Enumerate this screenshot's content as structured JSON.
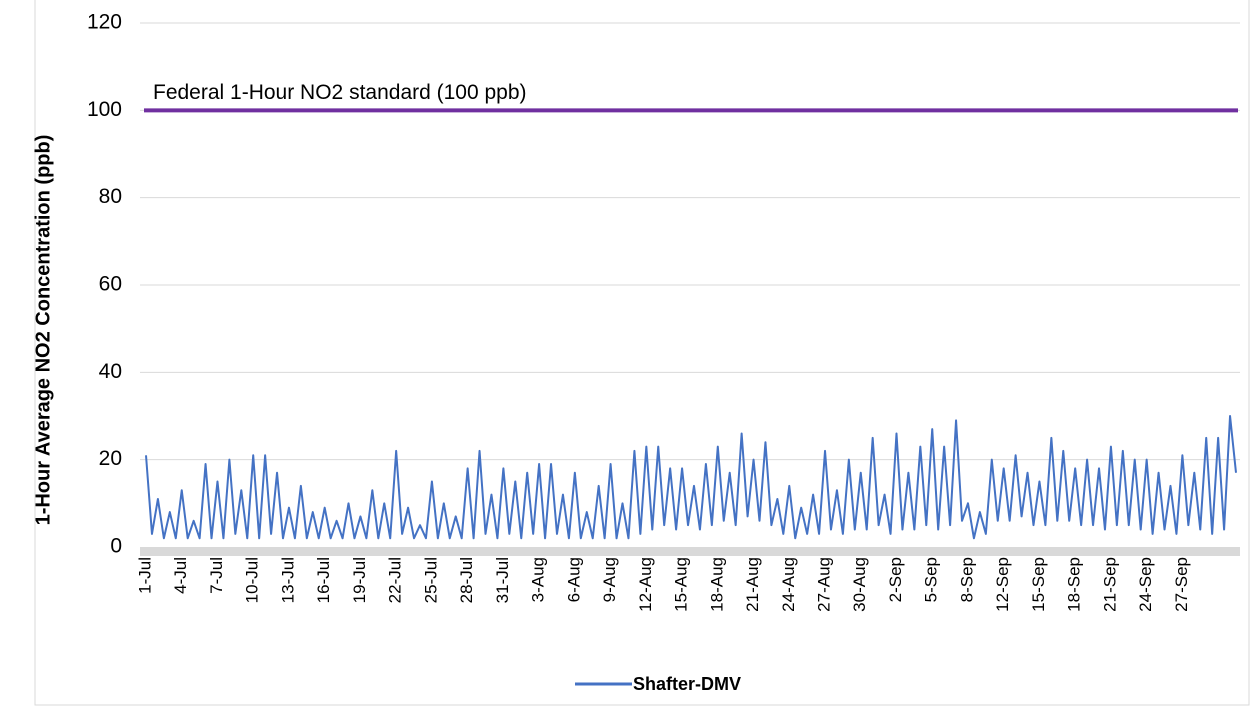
{
  "chart_data": {
    "type": "line",
    "ylabel": "1-Hour Average NO2 Concentration (ppb)",
    "ylim": [
      0,
      120
    ],
    "yticks": [
      0,
      20,
      40,
      60,
      80,
      100,
      120
    ],
    "grid": true,
    "legend": "bottom",
    "threshold": {
      "value": 100,
      "label": "Federal 1-Hour NO2 standard (100 ppb)",
      "color": "#7030a0"
    },
    "categories": [
      "1-Jul",
      null,
      null,
      null,
      null,
      null,
      "4-Jul",
      null,
      null,
      null,
      null,
      null,
      "7-Jul",
      null,
      null,
      null,
      null,
      null,
      "10-Jul",
      null,
      null,
      null,
      null,
      null,
      "13-Jul",
      null,
      null,
      null,
      null,
      null,
      "16-Jul",
      null,
      null,
      null,
      null,
      null,
      "19-Jul",
      null,
      null,
      null,
      null,
      null,
      "22-Jul",
      null,
      null,
      null,
      null,
      null,
      "25-Jul",
      null,
      null,
      null,
      null,
      null,
      "28-Jul",
      null,
      null,
      null,
      null,
      null,
      "31-Jul",
      null,
      null,
      null,
      null,
      null,
      "3-Aug",
      null,
      null,
      null,
      null,
      null,
      "6-Aug",
      null,
      null,
      null,
      null,
      null,
      "9-Aug",
      null,
      null,
      null,
      null,
      null,
      "12-Aug",
      null,
      null,
      null,
      null,
      null,
      "15-Aug",
      null,
      null,
      null,
      null,
      null,
      "18-Aug",
      null,
      null,
      null,
      null,
      null,
      "21-Aug",
      null,
      null,
      null,
      null,
      null,
      "24-Aug",
      null,
      null,
      null,
      null,
      null,
      "27-Aug",
      null,
      null,
      null,
      null,
      null,
      "30-Aug",
      null,
      null,
      null,
      null,
      null,
      "2-Sep",
      null,
      null,
      null,
      null,
      null,
      "5-Sep",
      null,
      null,
      null,
      null,
      null,
      "8-Sep",
      null,
      null,
      null,
      null,
      null,
      "12-Sep",
      null,
      null,
      null,
      null,
      null,
      "15-Sep",
      null,
      null,
      null,
      null,
      null,
      "18-Sep",
      null,
      null,
      null,
      null,
      null,
      "21-Sep",
      null,
      null,
      null,
      null,
      null,
      "24-Sep",
      null,
      null,
      null,
      null,
      null,
      "27-Sep",
      null,
      null,
      null,
      null,
      null,
      null,
      null,
      null,
      null
    ],
    "series": [
      {
        "name": "Shafter-DMV",
        "color": "#4472c4",
        "values": [
          21,
          3,
          11,
          2,
          8,
          2,
          13,
          2,
          6,
          2,
          19,
          2,
          15,
          2,
          20,
          3,
          13,
          2,
          21,
          2,
          21,
          3,
          17,
          2,
          9,
          2,
          14,
          2,
          8,
          2,
          9,
          2,
          6,
          2,
          10,
          2,
          7,
          2,
          13,
          2,
          10,
          2,
          22,
          3,
          9,
          2,
          5,
          2,
          15,
          2,
          10,
          2,
          7,
          2,
          18,
          2,
          22,
          3,
          12,
          2,
          18,
          3,
          15,
          2,
          17,
          3,
          19,
          2,
          19,
          3,
          12,
          2,
          17,
          2,
          8,
          2,
          14,
          2,
          19,
          2,
          10,
          2,
          22,
          3,
          23,
          4,
          23,
          5,
          18,
          4,
          18,
          5,
          14,
          4,
          19,
          5,
          23,
          6,
          17,
          5,
          26,
          7,
          20,
          6,
          24,
          5,
          11,
          3,
          14,
          2,
          9,
          3,
          12,
          3,
          22,
          4,
          13,
          3,
          20,
          4,
          17,
          4,
          25,
          5,
          12,
          3,
          26,
          4,
          17,
          4,
          23,
          5,
          27,
          4,
          23,
          5,
          29,
          6,
          10,
          2,
          8,
          3,
          20,
          6,
          18,
          6,
          21,
          7,
          17,
          5,
          15,
          5,
          25,
          6,
          22,
          6,
          18,
          5,
          20,
          5,
          18,
          4,
          23,
          5,
          22,
          5,
          20,
          4,
          20,
          3,
          17,
          4,
          14,
          3,
          21,
          5,
          17,
          4,
          25,
          3,
          25,
          4,
          30,
          17
        ]
      }
    ]
  }
}
